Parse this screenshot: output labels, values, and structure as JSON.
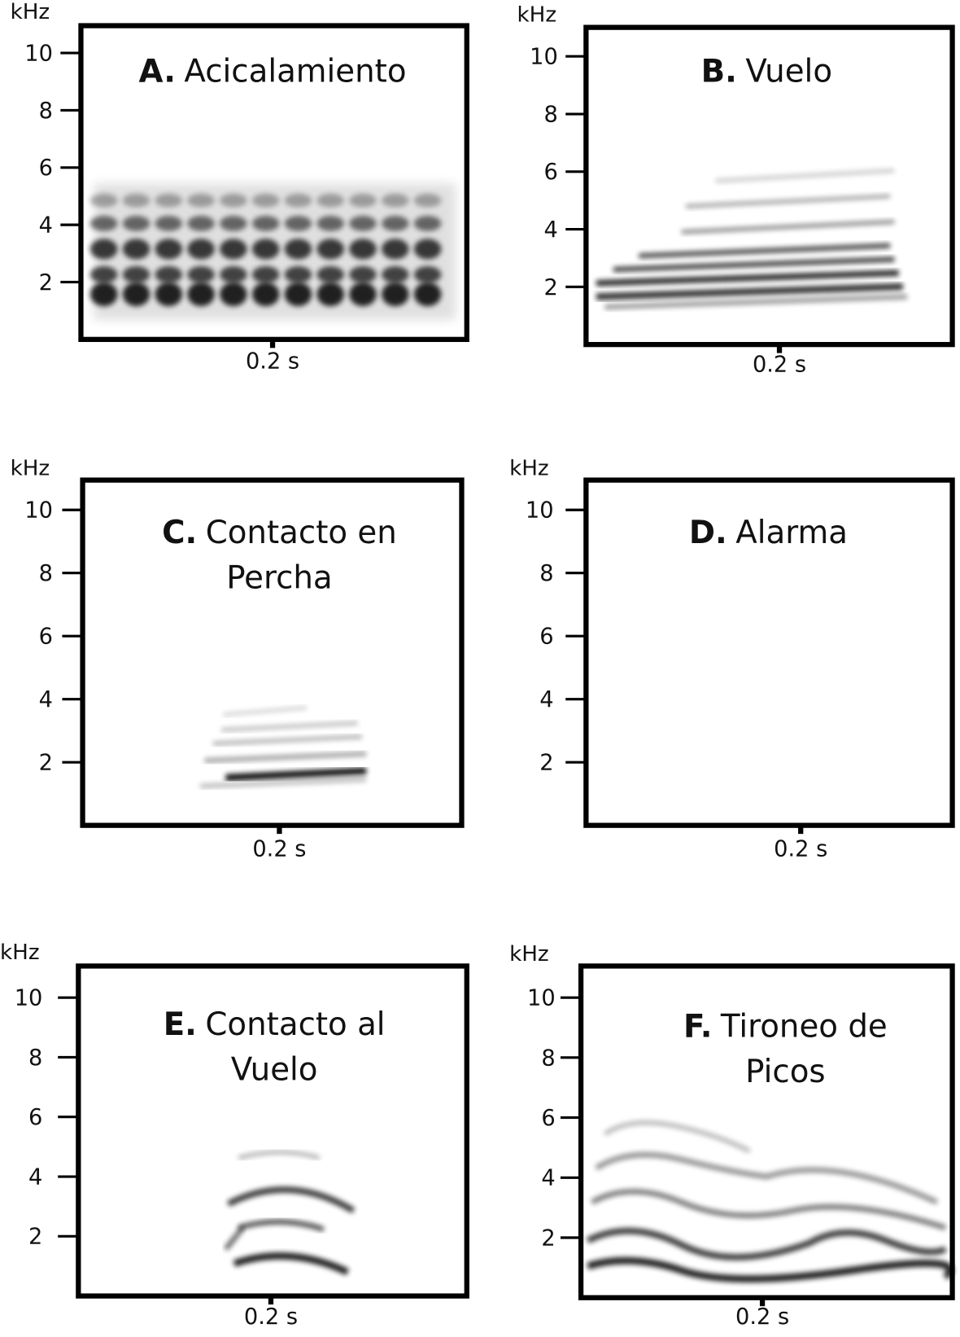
{
  "panels": [
    {
      "letter": "A.",
      "title_lines": [
        "Acicalamiento"
      ],
      "y_unit": "kHz",
      "yticks": [
        10,
        8,
        6,
        4,
        2
      ],
      "scale_label": "0.2 s"
    },
    {
      "letter": "B.",
      "title_lines": [
        "Vuelo"
      ],
      "y_unit": "kHz",
      "yticks": [
        10,
        8,
        6,
        4,
        2
      ],
      "scale_label": "0.2 s"
    },
    {
      "letter": "C.",
      "title_lines": [
        "Contacto en",
        "Percha"
      ],
      "y_unit": "kHz",
      "yticks": [
        10,
        8,
        6,
        4,
        2
      ],
      "scale_label": "0.2 s"
    },
    {
      "letter": "D.",
      "title_lines": [
        "Alarma"
      ],
      "y_unit": "kHz",
      "yticks": [
        10,
        8,
        6,
        4,
        2
      ],
      "scale_label": "0.2 s"
    },
    {
      "letter": "E.",
      "title_lines": [
        "Contacto al",
        "Vuelo"
      ],
      "y_unit": "kHz",
      "yticks": [
        10,
        8,
        6,
        4,
        2
      ],
      "scale_label": "0.2 s"
    },
    {
      "letter": "F.",
      "title_lines": [
        "Tironeo de",
        "Picos"
      ],
      "y_unit": "kHz",
      "yticks": [
        10,
        8,
        6,
        4,
        2
      ],
      "scale_label": "0.2 s"
    }
  ]
}
